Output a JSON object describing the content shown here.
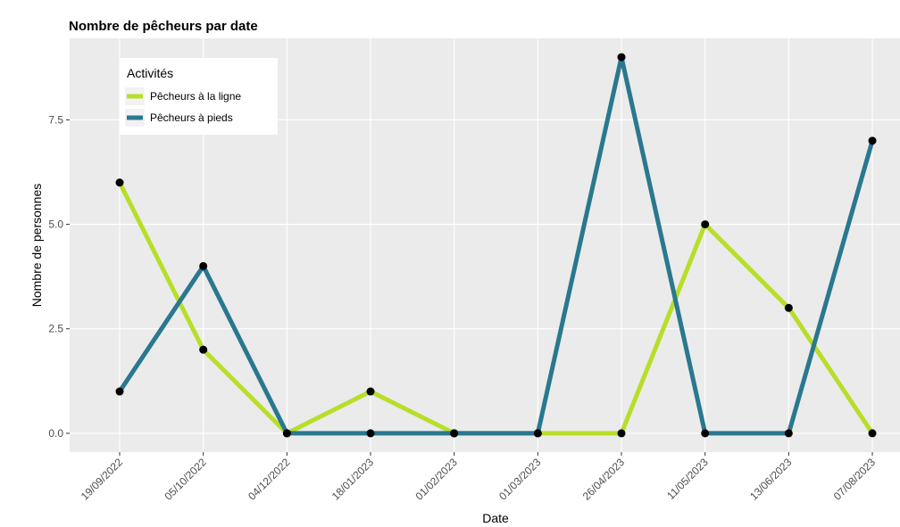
{
  "chart_data": {
    "type": "line",
    "title": "Nombre de pêcheurs par date",
    "x_label": "Date",
    "y_label": "Nombre de personnes",
    "legend_title": "Activités",
    "categories": [
      "19/09/2022",
      "05/10/2022",
      "04/12/2022",
      "18/01/2023",
      "01/02/2023",
      "01/03/2023",
      "26/04/2023",
      "11/05/2023",
      "13/06/2023",
      "07/08/2023"
    ],
    "series": [
      {
        "name": "Pêcheurs à la ligne",
        "color": "#b8de29",
        "values": [
          6,
          2,
          0,
          1,
          0,
          0,
          0,
          5,
          3,
          0
        ]
      },
      {
        "name": "Pêcheurs à pieds",
        "color": "#2a788e",
        "values": [
          1,
          4,
          0,
          0,
          0,
          0,
          9,
          0,
          0,
          7
        ]
      }
    ],
    "ylim": [
      -0.45,
      9.45
    ],
    "yticks": [
      {
        "value": 0,
        "label": "0.0"
      },
      2.5,
      {
        "value": 5,
        "label": "5.0"
      },
      7.5
    ],
    "grid": true,
    "legend_position": "top-left"
  }
}
